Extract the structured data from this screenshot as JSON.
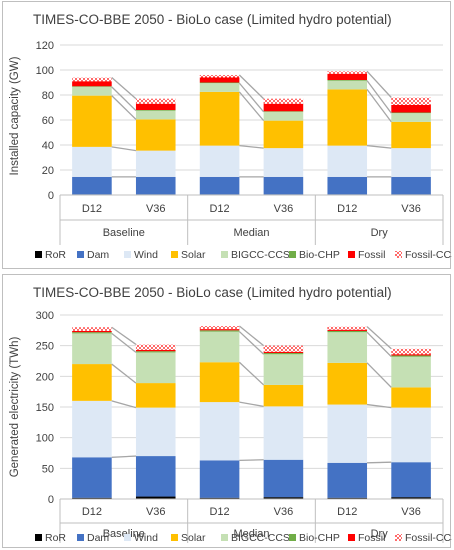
{
  "legend_items": [
    "RoR",
    "Dam",
    "Wind",
    "Solar",
    "BIGCC-CCS",
    "Bio-CHP",
    "Fossil",
    "Fossil-CCS"
  ],
  "colors": {
    "RoR": "#000000",
    "Dam": "#4472c4",
    "Wind": "#dde8f5",
    "Solar": "#ffc000",
    "BIGCC-CCS": "#c5e0b4",
    "Bio-CHP": "#70ad47",
    "Fossil": "#ff0000",
    "Fossil-CCS": "#ff0000"
  },
  "chart_data": [
    {
      "type": "bar",
      "stacked": true,
      "title": "TIMES-CO-BBE 2050 - BioLo case (Limited hydro potential)",
      "ylabel": "Installed capacity (GW)",
      "xlabel": "",
      "ylim": [
        0,
        120
      ],
      "yticks": [
        0,
        20,
        40,
        60,
        80,
        100,
        120
      ],
      "grid": true,
      "legend_position": "bottom",
      "categories": [
        "D12",
        "V36",
        "D12",
        "V36",
        "D12",
        "V36"
      ],
      "groups": [
        "Baseline",
        "Median",
        "Dry"
      ],
      "series": [
        {
          "name": "RoR",
          "values": [
            0.5,
            0.5,
            0.5,
            0.5,
            0.5,
            0.5
          ]
        },
        {
          "name": "Dam",
          "values": [
            14,
            14,
            14,
            14,
            14,
            14
          ]
        },
        {
          "name": "Wind",
          "values": [
            24,
            21,
            25,
            23,
            25,
            23
          ]
        },
        {
          "name": "Solar",
          "values": [
            41,
            25,
            43,
            22,
            45,
            21
          ]
        },
        {
          "name": "BIGCC-CCS",
          "values": [
            7,
            7,
            7,
            7,
            7,
            7
          ]
        },
        {
          "name": "Bio-CHP",
          "values": [
            0.5,
            0.5,
            0.5,
            0.5,
            0.5,
            0.5
          ]
        },
        {
          "name": "Fossil",
          "values": [
            4,
            5,
            4,
            6,
            5,
            6
          ]
        },
        {
          "name": "Fossil-CCS",
          "values": [
            3,
            4,
            2,
            4,
            2,
            6
          ]
        }
      ]
    },
    {
      "type": "bar",
      "stacked": true,
      "title": "TIMES-CO-BBE 2050 - BioLo case (Limited hydro potential)",
      "ylabel": "Generated electricity (TWh)",
      "xlabel": "",
      "ylim": [
        0,
        300
      ],
      "yticks": [
        0,
        50,
        100,
        150,
        200,
        250,
        300
      ],
      "grid": true,
      "legend_position": "bottom",
      "categories": [
        "D12",
        "V36",
        "D12",
        "V36",
        "D12",
        "V36"
      ],
      "groups": [
        "Baseline",
        "Median",
        "Dry"
      ],
      "series": [
        {
          "name": "RoR",
          "values": [
            2,
            4,
            2,
            3,
            2,
            3
          ]
        },
        {
          "name": "Dam",
          "values": [
            66,
            66,
            61,
            61,
            57,
            57
          ]
        },
        {
          "name": "Wind",
          "values": [
            92,
            79,
            95,
            87,
            95,
            89
          ]
        },
        {
          "name": "Solar",
          "values": [
            60,
            40,
            65,
            35,
            68,
            33
          ]
        },
        {
          "name": "BIGCC-CCS",
          "values": [
            50,
            50,
            50,
            50,
            50,
            50
          ]
        },
        {
          "name": "Bio-CHP",
          "values": [
            2,
            2,
            2,
            2,
            2,
            2
          ]
        },
        {
          "name": "Fossil",
          "values": [
            2,
            2,
            2,
            2,
            2,
            2
          ]
        },
        {
          "name": "Fossil-CCS",
          "values": [
            6,
            9,
            5,
            10,
            5,
            9
          ]
        }
      ]
    }
  ]
}
